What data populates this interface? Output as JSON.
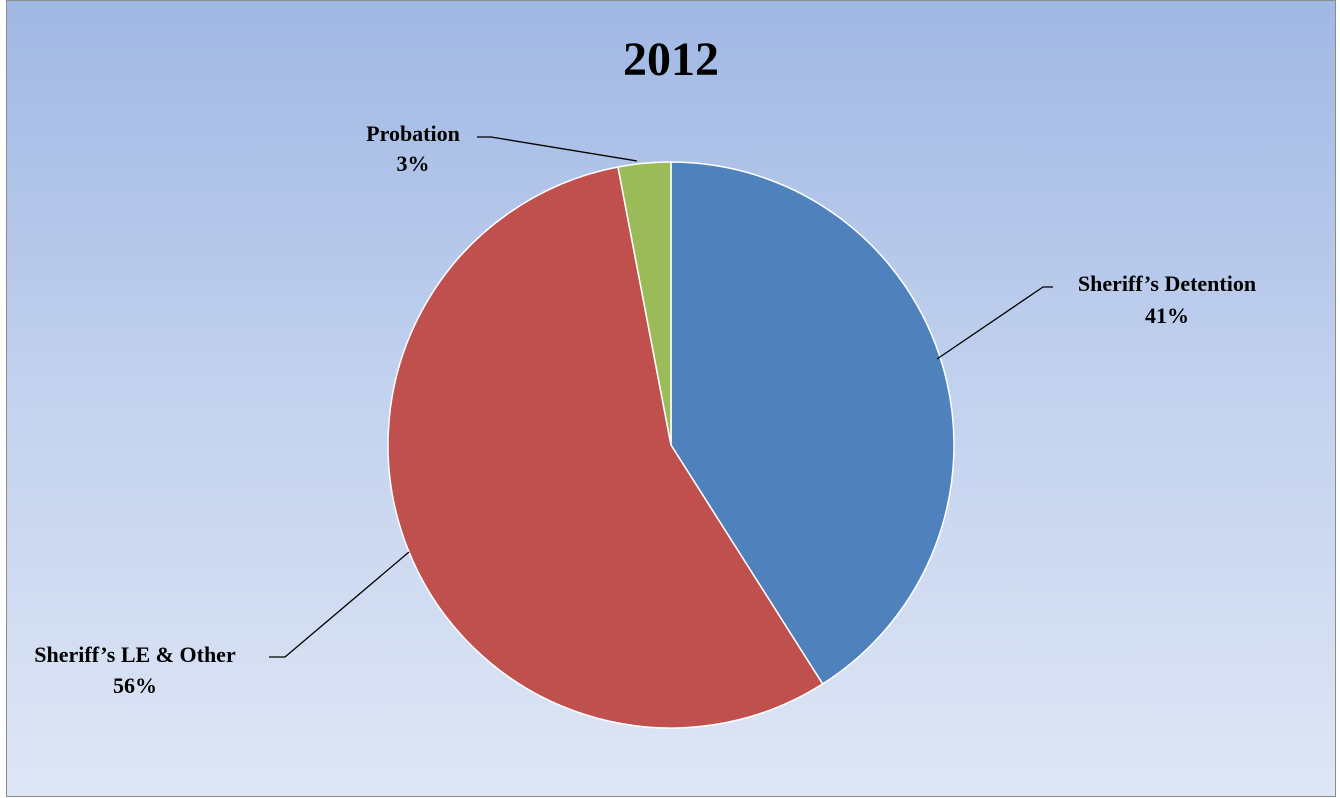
{
  "chart_data": {
    "type": "pie",
    "title": "2012",
    "start_angle_deg": 0,
    "direction": "clockwise",
    "slices": [
      {
        "name": "Sheriff’s Detention",
        "percent_label": "41%",
        "value": 41,
        "color": "#4f81bd"
      },
      {
        "name": "Sheriff’s LE & Other",
        "percent_label": "56%",
        "value": 56,
        "color": "#c0504d"
      },
      {
        "name": "Probation",
        "percent_label": "3%",
        "value": 3,
        "color": "#9bbb59"
      }
    ],
    "legend": "none",
    "data_labels": "outside-with-leader-lines"
  }
}
